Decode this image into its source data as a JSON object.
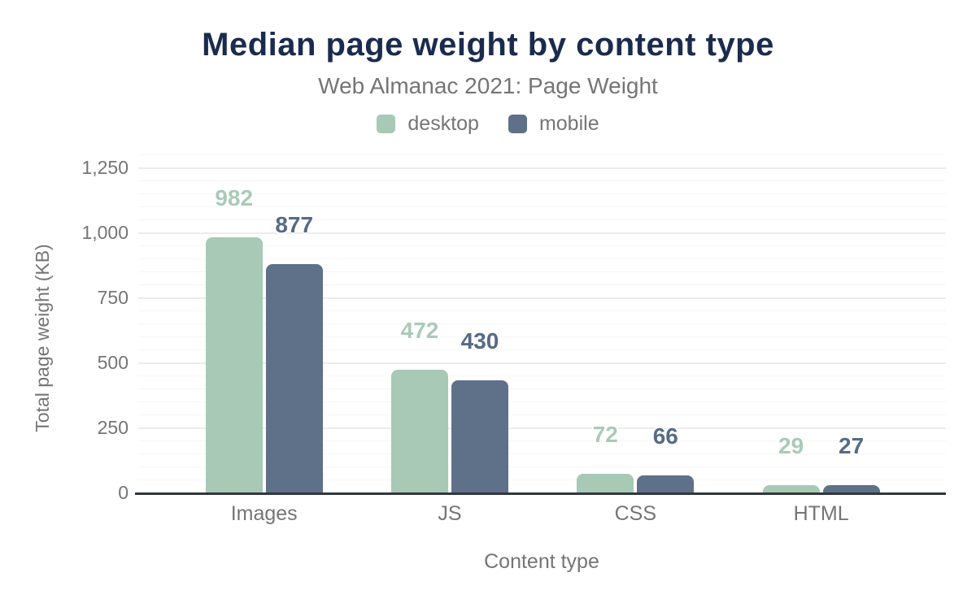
{
  "title": "Median page weight by content type",
  "subtitle": "Web Almanac 2021: Page Weight",
  "legend": {
    "items": [
      {
        "label": "desktop",
        "color": "#a7c9b6"
      },
      {
        "label": "mobile",
        "color": "#5f7089"
      }
    ]
  },
  "chart_data": {
    "type": "bar",
    "title": "Median page weight by content type",
    "subtitle": "Web Almanac 2021: Page Weight",
    "categories": [
      "Images",
      "JS",
      "CSS",
      "HTML"
    ],
    "series": [
      {
        "name": "desktop",
        "values": [
          982,
          472,
          72,
          29
        ],
        "color": "#a7c9b6",
        "label_color": "#a9cbb8"
      },
      {
        "name": "mobile",
        "values": [
          877,
          430,
          66,
          27
        ],
        "color": "#5f7089",
        "label_color": "#566b85"
      }
    ],
    "xlabel": "Content type",
    "ylabel": "Total page weight (KB)",
    "ylim": [
      0,
      1300
    ],
    "ytick_values": [
      0,
      250,
      500,
      750,
      1000,
      1250
    ],
    "ytick_labels": [
      "0",
      "250",
      "500",
      "750",
      "1,000",
      "1,250"
    ],
    "minor_tick_interval": 50,
    "grid": true,
    "legend_position": "top",
    "data_labels": true
  },
  "colors": {
    "title_text": "#1b2b4e",
    "muted_text": "#757575",
    "axis_line": "#32373d",
    "major_gridline": "#ececec",
    "minor_gridline": "#f6f6f6",
    "background": "#ffffff"
  }
}
